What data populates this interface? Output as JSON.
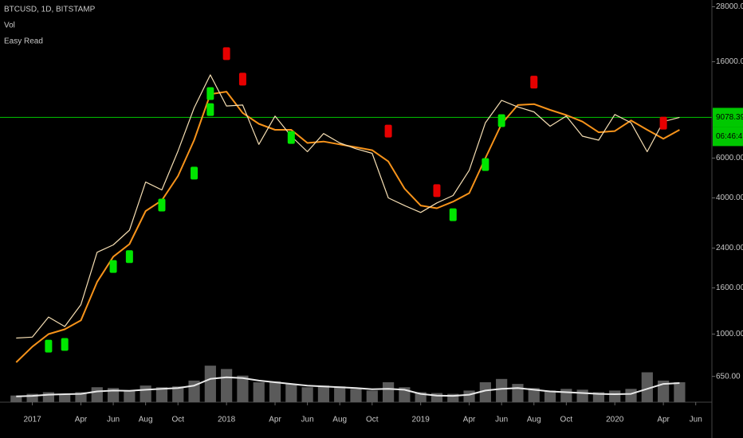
{
  "chart_data": {
    "type": "line",
    "symbol": "BTCUSD, 1D, BITSTAMP",
    "indicators": [
      "Vol",
      "Easy Read"
    ],
    "log_scale": true,
    "x": [
      "2016-12",
      "2017-01",
      "2017-02",
      "2017-03",
      "2017-04",
      "2017-05",
      "2017-06",
      "2017-07",
      "2017-08",
      "2017-09",
      "2017-10",
      "2017-11",
      "2017-12",
      "2018-01",
      "2018-02",
      "2018-03",
      "2018-04",
      "2018-05",
      "2018-06",
      "2018-07",
      "2018-08",
      "2018-09",
      "2018-10",
      "2018-11",
      "2018-12",
      "2019-01",
      "2019-02",
      "2019-03",
      "2019-04",
      "2019-05",
      "2019-06",
      "2019-07",
      "2019-08",
      "2019-09",
      "2019-10",
      "2019-11",
      "2019-12",
      "2020-01",
      "2020-02",
      "2020-03",
      "2020-04",
      "2020-05"
    ],
    "xlim": [
      "2016-11",
      "2020-07"
    ],
    "xticks": [
      {
        "value": "2017-01",
        "label": "2017"
      },
      {
        "value": "2017-04",
        "label": "Apr"
      },
      {
        "value": "2017-06",
        "label": "Jun"
      },
      {
        "value": "2017-08",
        "label": "Aug"
      },
      {
        "value": "2017-10",
        "label": "Oct"
      },
      {
        "value": "2018-01",
        "label": "2018"
      },
      {
        "value": "2018-04",
        "label": "Apr"
      },
      {
        "value": "2018-06",
        "label": "Jun"
      },
      {
        "value": "2018-08",
        "label": "Aug"
      },
      {
        "value": "2018-10",
        "label": "Oct"
      },
      {
        "value": "2019-01",
        "label": "2019"
      },
      {
        "value": "2019-04",
        "label": "Apr"
      },
      {
        "value": "2019-06",
        "label": "Jun"
      },
      {
        "value": "2019-08",
        "label": "Aug"
      },
      {
        "value": "2019-10",
        "label": "Oct"
      },
      {
        "value": "2020-01",
        "label": "2020"
      },
      {
        "value": "2020-04",
        "label": "Apr"
      },
      {
        "value": "2020-06",
        "label": "Jun"
      }
    ],
    "ylim": [
      500,
      30000
    ],
    "yticks": [
      {
        "value": 650,
        "label": "650.00"
      },
      {
        "value": 1000,
        "label": "1000.00"
      },
      {
        "value": 1600,
        "label": "1600.00"
      },
      {
        "value": 2400,
        "label": "2400.00"
      },
      {
        "value": 4000,
        "label": "4000.00"
      },
      {
        "value": 6000,
        "label": "6000.00"
      },
      {
        "value": 16000,
        "label": "16000.00"
      },
      {
        "value": 28000,
        "label": "28000.00"
      }
    ],
    "price": {
      "color": "#f5deb3",
      "values": [
        960,
        970,
        1190,
        1080,
        1350,
        2300,
        2480,
        2880,
        4700,
        4340,
        6450,
        10000,
        14000,
        10200,
        10300,
        6900,
        9200,
        7500,
        6400,
        7700,
        7000,
        6600,
        6300,
        4000,
        3700,
        3450,
        3800,
        4100,
        5300,
        8600,
        10800,
        10100,
        9600,
        8300,
        9200,
        7500,
        7200,
        9350,
        8600,
        6400,
        8700,
        9078.39
      ]
    },
    "ma": {
      "color": "#f7931a",
      "values": [
        750,
        880,
        1000,
        1050,
        1150,
        1700,
        2200,
        2500,
        3500,
        3900,
        5000,
        7200,
        11500,
        11800,
        9500,
        8500,
        8000,
        8000,
        7000,
        7100,
        6900,
        6700,
        6500,
        5800,
        4400,
        3700,
        3600,
        3850,
        4200,
        6000,
        8500,
        10300,
        10400,
        9800,
        9300,
        8700,
        7800,
        7900,
        8800,
        8000,
        7300,
        8000
      ]
    },
    "price_line": 9078.39,
    "price_line_color": "#00c800",
    "countdown": "06:46:47",
    "buy_signals": {
      "color": "#00e600",
      "x": [
        "2017-02",
        "2017-03",
        "2017-06",
        "2017-07",
        "2017-09",
        "2017-11",
        "2017-12",
        "2017-12",
        "2018-05",
        "2019-03",
        "2019-05",
        "2019-06"
      ],
      "values": [
        885,
        900,
        1990,
        2200,
        3720,
        5150,
        11570,
        9830,
        7400,
        3370,
        5620,
        8780
      ]
    },
    "sell_signals": {
      "color": "#e60000",
      "x": [
        "2018-01",
        "2018-02",
        "2018-11",
        "2019-02",
        "2019-08",
        "2020-04"
      ],
      "values": [
        17370,
        13400,
        7900,
        4310,
        13000,
        8560
      ]
    },
    "y2lim": [
      0,
      60000
    ],
    "volume": {
      "color": "#5a5a5a",
      "axis": "y2",
      "values": [
        4000,
        5000,
        6000,
        4500,
        6000,
        9000,
        8500,
        7000,
        10000,
        9000,
        9500,
        13000,
        22000,
        20000,
        16000,
        12000,
        12500,
        11000,
        9000,
        10000,
        9500,
        8000,
        7000,
        12000,
        9000,
        6000,
        5500,
        5000,
        7000,
        12000,
        14000,
        11000,
        8500,
        7000,
        8000,
        7500,
        6000,
        7000,
        8000,
        18000,
        13000,
        12000
      ]
    },
    "volume_ma": {
      "color": "#e8e8e8",
      "axis": "y2",
      "values": [
        3500,
        3800,
        4500,
        4800,
        5000,
        6500,
        7000,
        6800,
        7500,
        8000,
        8500,
        10000,
        14000,
        15000,
        14500,
        13000,
        12000,
        11000,
        10000,
        9500,
        9000,
        8500,
        7800,
        8000,
        7500,
        5000,
        4000,
        3800,
        4500,
        7000,
        8000,
        8500,
        7500,
        6500,
        6000,
        5500,
        5000,
        4800,
        5000,
        8000,
        11000,
        11500
      ]
    }
  }
}
